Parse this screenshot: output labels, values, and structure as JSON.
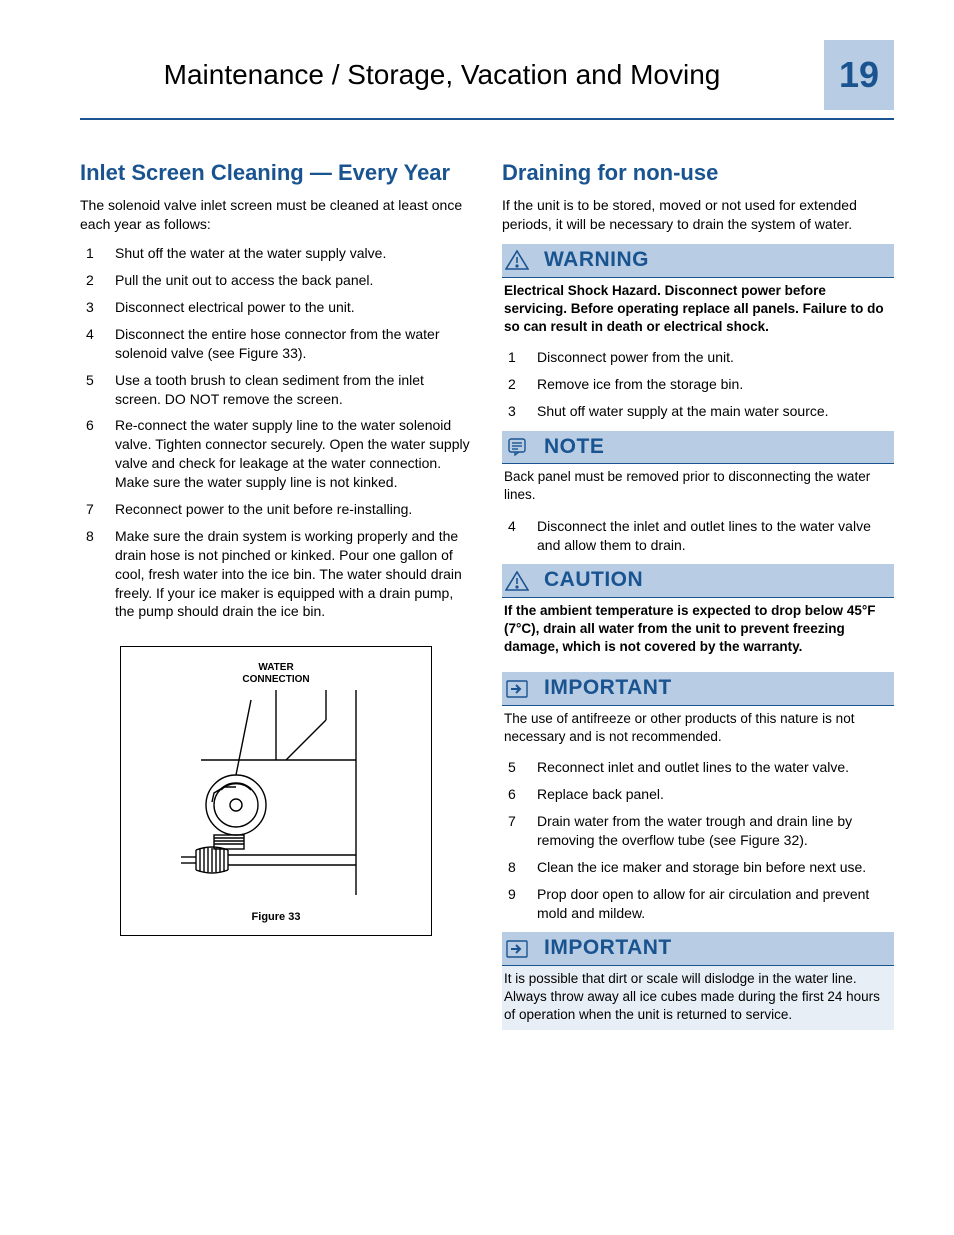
{
  "header": {
    "title": "Maintenance / Storage, Vacation and Moving",
    "page_number": "19",
    "accent_color": "#1a5490",
    "page_box_bg": "#b8cce4"
  },
  "left": {
    "heading": "Inlet Screen Cleaning — Every Year",
    "intro": "The solenoid valve inlet screen must be cleaned at least once each year as follows:",
    "steps": [
      {
        "n": "1",
        "t": "Shut off the water at the water supply valve."
      },
      {
        "n": "2",
        "t": "Pull the unit out to access the back panel."
      },
      {
        "n": "3",
        "t": "Disconnect electrical power to the unit."
      },
      {
        "n": "4",
        "t": "Disconnect the entire hose connector from the water solenoid valve (see Figure 33)."
      },
      {
        "n": "5",
        "t": "Use a tooth brush to clean sediment from the inlet screen. DO NOT remove the screen."
      },
      {
        "n": "6",
        "t": "Re-connect the water supply line to the water solenoid valve. Tighten connector securely. Open the water supply valve and check for leakage at the water connection.  Make sure the water supply line is not kinked."
      },
      {
        "n": "7",
        "t": "Reconnect power to the unit before re-installing."
      },
      {
        "n": "8",
        "t": "Make sure the drain system is working properly and the drain hose is not pinched or kinked. Pour one gallon of cool, fresh water into the ice bin. The water should drain freely. If your ice maker is equipped with a drain pump, the pump should drain the ice bin."
      }
    ],
    "figure": {
      "label_line1": "WATER",
      "label_line2": "CONNECTION",
      "caption": "Figure 33"
    }
  },
  "right": {
    "heading": "Draining for non-use",
    "intro": "If the unit is to be stored, moved or not used for extended periods, it will be necessary to drain the system of water.",
    "warning": {
      "title": "WARNING",
      "body": "Electrical Shock Hazard. Disconnect power before servicing. Before operating replace all panels. Failure to do so can result in death or electrical shock."
    },
    "steps_a": [
      {
        "n": "1",
        "t": "Disconnect power from the unit."
      },
      {
        "n": "2",
        "t": "Remove ice from the storage bin."
      },
      {
        "n": "3",
        "t": "Shut off water supply at the main water source."
      }
    ],
    "note": {
      "title": "NOTE",
      "body": "Back panel must be removed prior to disconnecting the water lines."
    },
    "steps_b": [
      {
        "n": "4",
        "t": "Disconnect the inlet and outlet lines to the water valve and allow them to drain."
      }
    ],
    "caution": {
      "title": "CAUTION",
      "body": "If the ambient temperature is expected to drop below 45°F (7°C), drain all water from the unit to prevent freezing damage, which is not covered by the warranty."
    },
    "important1": {
      "title": "IMPORTANT",
      "body": "The use of antifreeze or other products of this nature is not necessary and is not recommended."
    },
    "steps_c": [
      {
        "n": "5",
        "t": "Reconnect inlet and outlet lines to the water valve."
      },
      {
        "n": "6",
        "t": "Replace back panel."
      },
      {
        "n": "7",
        "t": "Drain water from the water trough and drain line by removing the overflow tube (see Figure 32)."
      },
      {
        "n": "8",
        "t": "Clean the ice maker and storage bin before next use."
      },
      {
        "n": "9",
        "t": "Prop door open to allow for air circulation and prevent mold and mildew."
      }
    ],
    "important2": {
      "title": "IMPORTANT",
      "body": "It is possible that dirt or scale will dislodge in the water line. Always throw away all ice cubes made during the first 24 hours of operation when the unit is returned to service."
    }
  }
}
